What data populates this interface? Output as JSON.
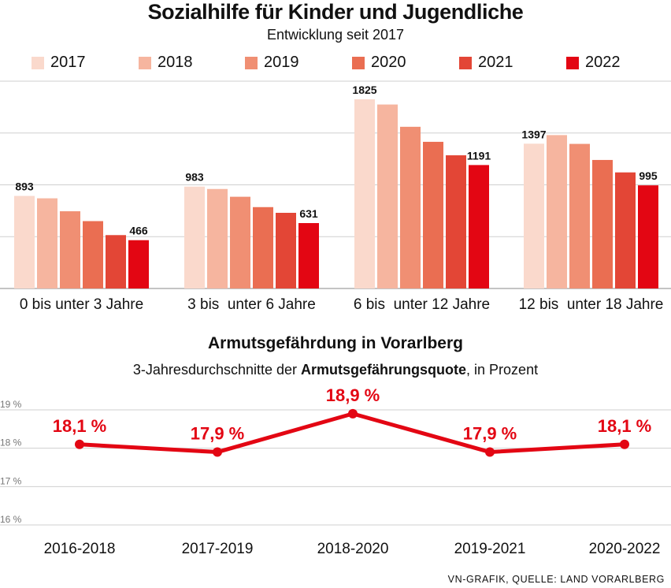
{
  "chart_data": [
    {
      "type": "bar",
      "title": "Sozialhilfe für Kinder und Jugendliche",
      "subtitle": "Entwicklung seit 2017",
      "categories": [
        "0 bis unter 3 Jahre",
        "3 bis  unter 6 Jahre",
        "6 bis  unter 12 Jahre",
        "12 bis  unter 18 Jahre"
      ],
      "series": [
        {
          "name": "2017",
          "color": "#fad9cc",
          "values": [
            893,
            983,
            1825,
            1397
          ]
        },
        {
          "name": "2018",
          "color": "#f6b59f",
          "values": [
            870,
            960,
            1775,
            1480
          ]
        },
        {
          "name": "2019",
          "color": "#f08f73",
          "values": [
            745,
            885,
            1560,
            1395
          ]
        },
        {
          "name": "2020",
          "color": "#ea6e52",
          "values": [
            650,
            785,
            1415,
            1240
          ]
        },
        {
          "name": "2021",
          "color": "#e34636",
          "values": [
            515,
            730,
            1285,
            1120
          ]
        },
        {
          "name": "2022",
          "color": "#e30613",
          "values": [
            466,
            631,
            1191,
            995
          ]
        }
      ],
      "data_labels": [
        {
          "category": 0,
          "series": 0,
          "text": "893"
        },
        {
          "category": 0,
          "series": 5,
          "text": "466"
        },
        {
          "category": 1,
          "series": 0,
          "text": "983"
        },
        {
          "category": 1,
          "series": 5,
          "text": "631"
        },
        {
          "category": 2,
          "series": 0,
          "text": "1825"
        },
        {
          "category": 2,
          "series": 5,
          "text": "1191"
        },
        {
          "category": 3,
          "series": 0,
          "text": "1397"
        },
        {
          "category": 3,
          "series": 5,
          "text": "995"
        }
      ],
      "ylim": [
        0,
        2000
      ],
      "grid_values": [
        500,
        1000,
        1500,
        2000
      ],
      "legend": "top"
    },
    {
      "type": "line",
      "title": "Armutsgefährdung in Vorarlberg",
      "subtitle_parts": [
        "3-Jahresdurchschnitte der ",
        "Armutsgefährungsquote",
        ", in Prozent"
      ],
      "categories": [
        "2016-2018",
        "2017-2019",
        "2018-2020",
        "2019-2021",
        "2020-2022"
      ],
      "values": [
        18.1,
        17.9,
        18.9,
        17.9,
        18.1
      ],
      "data_labels": [
        "18,1 %",
        "17,9 %",
        "18,9 %",
        "17,9 %",
        "18,1 %"
      ],
      "ylim": [
        16,
        19
      ],
      "yticks": [
        16,
        17,
        18,
        19
      ],
      "ytick_labels": [
        "16 %",
        "17 %",
        "18 %",
        "19 %"
      ],
      "color": "#e30613"
    }
  ],
  "source": "VN-GRAFIK, QUELLE: LAND VORARLBERG"
}
